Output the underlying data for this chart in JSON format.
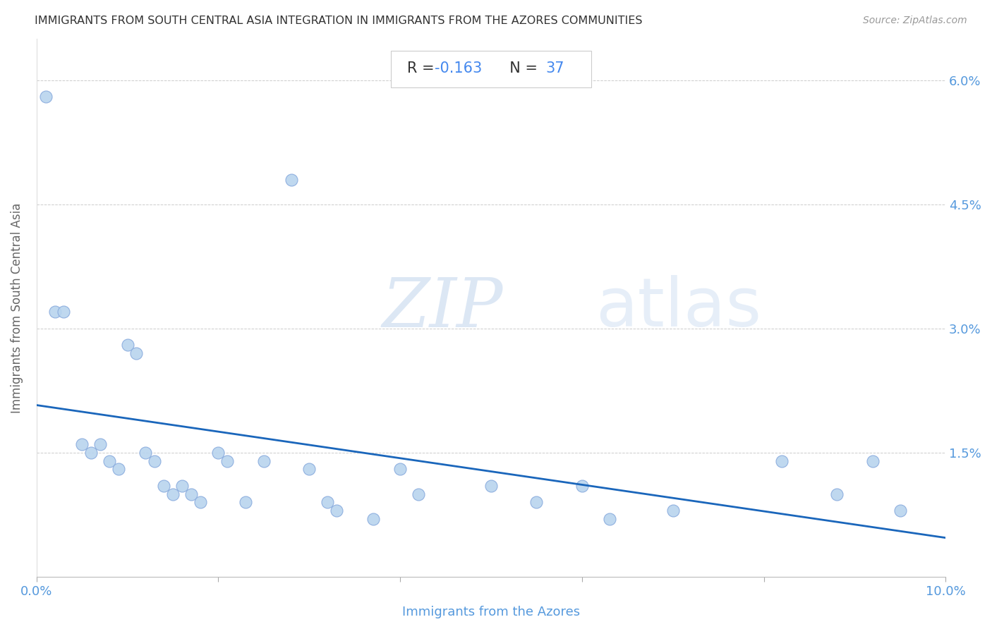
{
  "title": "IMMIGRANTS FROM SOUTH CENTRAL ASIA INTEGRATION IN IMMIGRANTS FROM THE AZORES COMMUNITIES",
  "source": "Source: ZipAtlas.com",
  "xlabel": "Immigrants from the Azores",
  "ylabel": "Immigrants from South Central Asia",
  "R_val": "-0.163",
  "N_val": "37",
  "x_points": [
    0.001,
    0.002,
    0.003,
    0.005,
    0.006,
    0.007,
    0.008,
    0.009,
    0.01,
    0.011,
    0.012,
    0.013,
    0.014,
    0.015,
    0.016,
    0.017,
    0.018,
    0.02,
    0.021,
    0.023,
    0.025,
    0.028,
    0.03,
    0.032,
    0.033,
    0.037,
    0.04,
    0.042,
    0.05,
    0.055,
    0.06,
    0.063,
    0.07,
    0.082,
    0.088,
    0.092,
    0.095
  ],
  "y_points": [
    0.058,
    0.032,
    0.032,
    0.016,
    0.015,
    0.016,
    0.014,
    0.013,
    0.028,
    0.027,
    0.015,
    0.014,
    0.011,
    0.01,
    0.011,
    0.01,
    0.009,
    0.015,
    0.014,
    0.009,
    0.014,
    0.048,
    0.013,
    0.009,
    0.008,
    0.007,
    0.013,
    0.01,
    0.011,
    0.009,
    0.011,
    0.007,
    0.008,
    0.014,
    0.01,
    0.014,
    0.008
  ],
  "scatter_color": "#b8d4ee",
  "scatter_edgecolor": "#88aadd",
  "line_color": "#1a66bb",
  "title_color": "#333333",
  "axis_tick_color": "#5599dd",
  "grid_color": "#cccccc",
  "R_text_color": "#333333",
  "N_text_color": "#4488ee",
  "xlim": [
    0.0,
    0.1
  ],
  "ylim": [
    0.0,
    0.065
  ],
  "xticks": [
    0.0,
    0.02,
    0.04,
    0.06,
    0.08,
    0.1
  ],
  "yticks": [
    0.0,
    0.015,
    0.03,
    0.045,
    0.06
  ],
  "xticklabels_show": [
    "0.0%",
    "",
    "",
    "",
    "",
    "10.0%"
  ],
  "yticklabels_right": [
    "",
    "1.5%",
    "3.0%",
    "4.5%",
    "6.0%"
  ],
  "marker_size": 150,
  "line_width": 2.0,
  "watermark_zip": "ZIP",
  "watermark_atlas": "atlas",
  "watermark_color_zip": "#c0d4ec",
  "watermark_color_atlas": "#c8daf0"
}
